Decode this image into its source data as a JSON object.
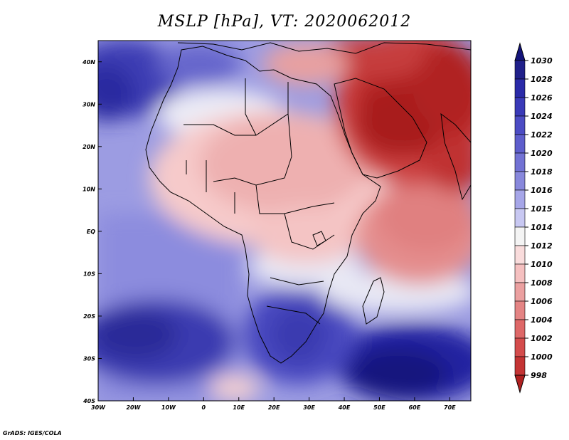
{
  "title": "MSLP [hPa], VT: 2020062012",
  "credit": "GrADS: IGES/COLA",
  "map": {
    "projection": "latlon",
    "lon_range": [
      -30,
      76
    ],
    "lat_range": [
      -40,
      45
    ],
    "x_ticks": [
      "30W",
      "20W",
      "10W",
      "0",
      "10E",
      "20E",
      "30E",
      "40E",
      "50E",
      "60E",
      "70E"
    ],
    "y_ticks": [
      "40N",
      "30N",
      "20N",
      "10N",
      "EQ",
      "10S",
      "20S",
      "30S",
      "40S"
    ],
    "colorbar": {
      "levels": [
        "1030",
        "1028",
        "1026",
        "1024",
        "1022",
        "1020",
        "1018",
        "1016",
        "1015",
        "1014",
        "1012",
        "1010",
        "1008",
        "1006",
        "1004",
        "1002",
        "1000",
        "998"
      ],
      "colors": [
        "#20208a",
        "#2a2aa8",
        "#3a3ab8",
        "#4c4cc4",
        "#5e5ecc",
        "#7272d4",
        "#8888dc",
        "#a6a6e8",
        "#c8c8f2",
        "#f4f4f4",
        "#f9dcdc",
        "#f5c0c0",
        "#eba0a0",
        "#e48484",
        "#de6868",
        "#d44c4c",
        "#c43434",
        "#b02020"
      ]
    }
  }
}
